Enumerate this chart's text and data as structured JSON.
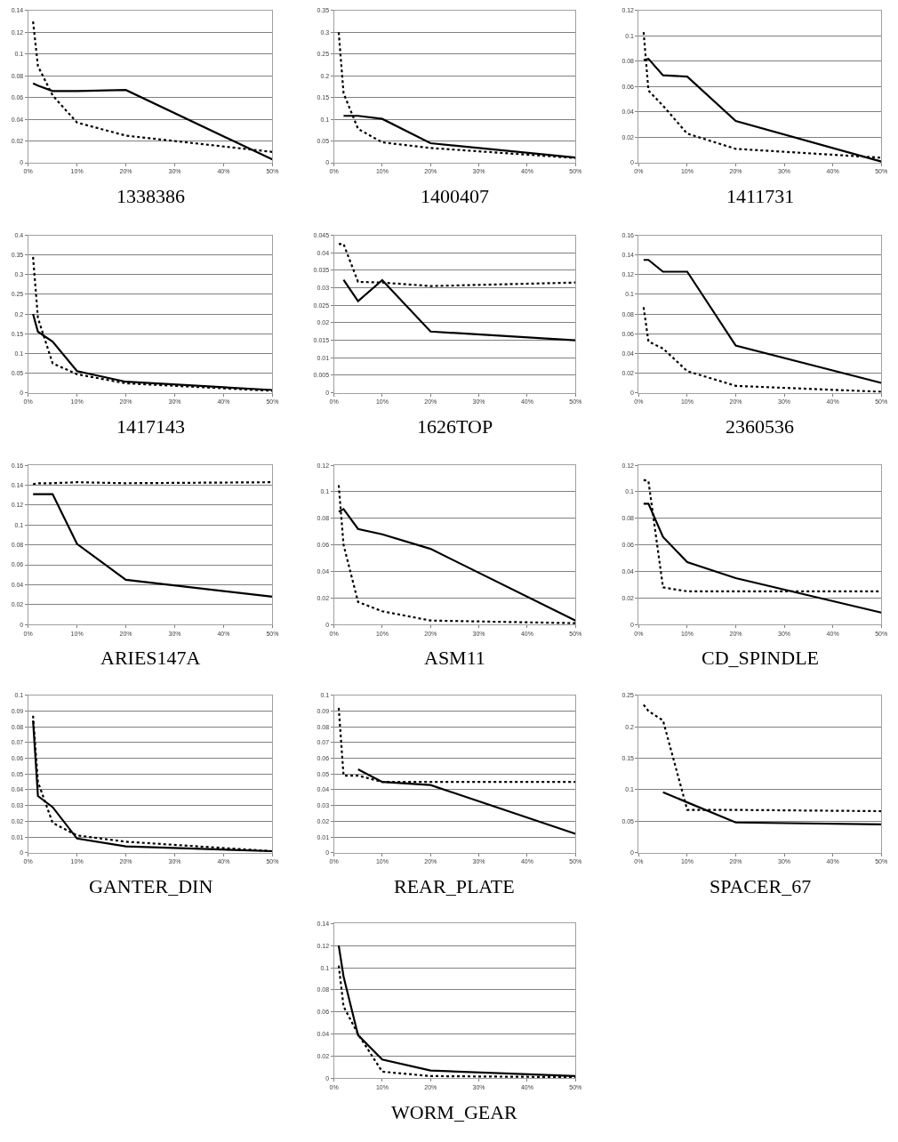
{
  "chart_data": [
    {
      "type": "line",
      "title": "1338386",
      "x": [
        1,
        2,
        5,
        10,
        20,
        50
      ],
      "xlim": [
        0,
        50
      ],
      "xticks": [
        {
          "value": 0,
          "label": "0%"
        },
        {
          "value": 10,
          "label": "10%"
        },
        {
          "value": 20,
          "label": "20%"
        },
        {
          "value": 30,
          "label": "30%"
        },
        {
          "value": 40,
          "label": "40%"
        },
        {
          "value": 50,
          "label": "50%"
        }
      ],
      "ylim": [
        0,
        0.14
      ],
      "yticks": [
        0,
        0.02,
        0.04,
        0.06,
        0.08,
        0.1,
        0.12,
        0.14
      ],
      "grid": "y",
      "series": [
        {
          "color": "#000000",
          "line_style": "solid",
          "values": [
            0.073,
            0.071,
            0.066,
            0.066,
            0.067,
            0.003
          ]
        },
        {
          "color": "#000000",
          "line_style": "dotted",
          "values": [
            0.13,
            0.089,
            0.062,
            0.037,
            0.025,
            0.01
          ]
        }
      ]
    },
    {
      "type": "line",
      "title": "1400407",
      "x": [
        1,
        2,
        5,
        10,
        20,
        50
      ],
      "xlim": [
        0,
        50
      ],
      "xticks": [
        {
          "value": 0,
          "label": "0%"
        },
        {
          "value": 10,
          "label": "10%"
        },
        {
          "value": 20,
          "label": "20%"
        },
        {
          "value": 30,
          "label": "30%"
        },
        {
          "value": 40,
          "label": "40%"
        },
        {
          "value": 50,
          "label": "50%"
        }
      ],
      "ylim": [
        0,
        0.35
      ],
      "yticks": [
        0,
        0.05,
        0.1,
        0.15,
        0.2,
        0.25,
        0.3,
        0.35
      ],
      "grid": "y",
      "series": [
        {
          "color": "#000000",
          "line_style": "solid",
          "values": [
            null,
            0.108,
            0.108,
            0.101,
            0.045,
            0.012
          ]
        },
        {
          "color": "#000000",
          "line_style": "dotted",
          "values": [
            0.3,
            0.16,
            0.078,
            0.047,
            0.034,
            0.011
          ]
        }
      ]
    },
    {
      "type": "line",
      "title": "1411731",
      "x": [
        1,
        2,
        5,
        10,
        20,
        50
      ],
      "xlim": [
        0,
        50
      ],
      "xticks": [
        {
          "value": 0,
          "label": "0%"
        },
        {
          "value": 10,
          "label": "10%"
        },
        {
          "value": 20,
          "label": "20%"
        },
        {
          "value": 30,
          "label": "30%"
        },
        {
          "value": 40,
          "label": "40%"
        },
        {
          "value": 50,
          "label": "50%"
        }
      ],
      "ylim": [
        0,
        0.12
      ],
      "yticks": [
        0,
        0.02,
        0.04,
        0.06,
        0.08,
        0.1,
        0.12
      ],
      "grid": "y",
      "series": [
        {
          "color": "#000000",
          "line_style": "solid",
          "values": [
            0.081,
            0.082,
            0.069,
            0.068,
            0.033,
            0.001
          ]
        },
        {
          "color": "#000000",
          "line_style": "dotted",
          "values": [
            0.103,
            0.057,
            0.045,
            0.023,
            0.011,
            0.004
          ]
        }
      ]
    },
    {
      "type": "line",
      "title": "1417143",
      "x": [
        1,
        2,
        5,
        10,
        20,
        50
      ],
      "xlim": [
        0,
        50
      ],
      "xticks": [
        {
          "value": 0,
          "label": "0%"
        },
        {
          "value": 10,
          "label": "10%"
        },
        {
          "value": 20,
          "label": "20%"
        },
        {
          "value": 30,
          "label": "30%"
        },
        {
          "value": 40,
          "label": "40%"
        },
        {
          "value": 50,
          "label": "50%"
        }
      ],
      "ylim": [
        0,
        0.4
      ],
      "yticks": [
        0,
        0.05,
        0.1,
        0.15,
        0.2,
        0.25,
        0.3,
        0.35,
        0.4
      ],
      "grid": "y",
      "series": [
        {
          "color": "#000000",
          "line_style": "solid",
          "values": [
            0.2,
            0.155,
            0.13,
            0.055,
            0.028,
            0.007
          ]
        },
        {
          "color": "#000000",
          "line_style": "dotted",
          "values": [
            0.345,
            0.19,
            0.075,
            0.047,
            0.024,
            0.005
          ]
        }
      ]
    },
    {
      "type": "line",
      "title": "1626TOP",
      "x": [
        1,
        2,
        5,
        10,
        20,
        50
      ],
      "xlim": [
        0,
        50
      ],
      "xticks": [
        {
          "value": 0,
          "label": "0%"
        },
        {
          "value": 10,
          "label": "10%"
        },
        {
          "value": 20,
          "label": "20%"
        },
        {
          "value": 30,
          "label": "30%"
        },
        {
          "value": 40,
          "label": "40%"
        },
        {
          "value": 50,
          "label": "50%"
        }
      ],
      "ylim": [
        0,
        0.045
      ],
      "yticks": [
        0,
        0.005,
        0.01,
        0.015,
        0.02,
        0.025,
        0.03,
        0.035,
        0.04,
        0.045
      ],
      "grid": "y",
      "series": [
        {
          "color": "#000000",
          "line_style": "solid",
          "values": [
            null,
            0.0323,
            0.0262,
            0.0322,
            0.0175,
            0.015
          ]
        },
        {
          "color": "#000000",
          "line_style": "dotted",
          "values": [
            0.0425,
            0.0425,
            0.0317,
            0.0315,
            0.0305,
            0.0315
          ]
        }
      ]
    },
    {
      "type": "line",
      "title": "2360536",
      "x": [
        1,
        2,
        5,
        10,
        20,
        50
      ],
      "xlim": [
        0,
        50
      ],
      "xticks": [
        {
          "value": 0,
          "label": "0%"
        },
        {
          "value": 10,
          "label": "10%"
        },
        {
          "value": 20,
          "label": "20%"
        },
        {
          "value": 30,
          "label": "30%"
        },
        {
          "value": 40,
          "label": "40%"
        },
        {
          "value": 50,
          "label": "50%"
        }
      ],
      "ylim": [
        0,
        0.16
      ],
      "yticks": [
        0,
        0.02,
        0.04,
        0.06,
        0.08,
        0.1,
        0.12,
        0.14,
        0.16
      ],
      "grid": "y",
      "series": [
        {
          "color": "#000000",
          "line_style": "solid",
          "values": [
            0.135,
            0.135,
            0.123,
            0.123,
            0.048,
            0.01
          ]
        },
        {
          "color": "#000000",
          "line_style": "dotted",
          "values": [
            0.087,
            0.052,
            0.045,
            0.022,
            0.007,
            0.001
          ]
        }
      ]
    },
    {
      "type": "line",
      "title": "ARIES147A",
      "x": [
        1,
        2,
        5,
        10,
        20,
        50
      ],
      "xlim": [
        0,
        50
      ],
      "xticks": [
        {
          "value": 0,
          "label": "0%"
        },
        {
          "value": 10,
          "label": "10%"
        },
        {
          "value": 20,
          "label": "20%"
        },
        {
          "value": 30,
          "label": "30%"
        },
        {
          "value": 40,
          "label": "40%"
        },
        {
          "value": 50,
          "label": "50%"
        }
      ],
      "ylim": [
        0,
        0.16
      ],
      "yticks": [
        0,
        0.02,
        0.04,
        0.06,
        0.08,
        0.1,
        0.12,
        0.14,
        0.16
      ],
      "grid": "y",
      "series": [
        {
          "color": "#000000",
          "line_style": "solid",
          "values": [
            0.131,
            0.131,
            0.131,
            0.081,
            0.045,
            0.028
          ]
        },
        {
          "color": "#000000",
          "line_style": "dotted",
          "values": [
            0.141,
            0.142,
            0.142,
            0.143,
            0.142,
            0.143
          ]
        }
      ]
    },
    {
      "type": "line",
      "title": "ASM11",
      "x": [
        1,
        2,
        5,
        10,
        20,
        50
      ],
      "xlim": [
        0,
        50
      ],
      "xticks": [
        {
          "value": 0,
          "label": "0%"
        },
        {
          "value": 10,
          "label": "10%"
        },
        {
          "value": 20,
          "label": "20%"
        },
        {
          "value": 30,
          "label": "30%"
        },
        {
          "value": 40,
          "label": "40%"
        },
        {
          "value": 50,
          "label": "50%"
        }
      ],
      "ylim": [
        0,
        0.12
      ],
      "yticks": [
        0,
        0.02,
        0.04,
        0.06,
        0.08,
        0.1,
        0.12
      ],
      "grid": "y",
      "series": [
        {
          "color": "#000000",
          "line_style": "solid",
          "values": [
            0.085,
            0.087,
            0.072,
            0.068,
            0.057,
            0.003
          ]
        },
        {
          "color": "#000000",
          "line_style": "dotted",
          "values": [
            0.105,
            0.06,
            0.017,
            0.01,
            0.003,
            0.001
          ]
        }
      ]
    },
    {
      "type": "line",
      "title": "CD_SPINDLE",
      "x": [
        1,
        2,
        5,
        10,
        20,
        50
      ],
      "xlim": [
        0,
        50
      ],
      "xticks": [
        {
          "value": 0,
          "label": "0%"
        },
        {
          "value": 10,
          "label": "10%"
        },
        {
          "value": 20,
          "label": "20%"
        },
        {
          "value": 30,
          "label": "30%"
        },
        {
          "value": 40,
          "label": "40%"
        },
        {
          "value": 50,
          "label": "50%"
        }
      ],
      "ylim": [
        0,
        0.12
      ],
      "yticks": [
        0,
        0.02,
        0.04,
        0.06,
        0.08,
        0.1,
        0.12
      ],
      "grid": "y",
      "series": [
        {
          "color": "#000000",
          "line_style": "solid",
          "values": [
            0.091,
            0.091,
            0.066,
            0.047,
            0.035,
            0.009
          ]
        },
        {
          "color": "#000000",
          "line_style": "dotted",
          "values": [
            0.109,
            0.108,
            0.028,
            0.025,
            0.025,
            0.025
          ]
        }
      ]
    },
    {
      "type": "line",
      "title": "GANTER_DIN",
      "x": [
        1,
        2,
        5,
        10,
        20,
        50
      ],
      "xlim": [
        0,
        50
      ],
      "xticks": [
        {
          "value": 0,
          "label": "0%"
        },
        {
          "value": 10,
          "label": "10%"
        },
        {
          "value": 20,
          "label": "20%"
        },
        {
          "value": 30,
          "label": "30%"
        },
        {
          "value": 40,
          "label": "40%"
        },
        {
          "value": 50,
          "label": "50%"
        }
      ],
      "ylim": [
        0,
        0.1
      ],
      "yticks": [
        0,
        0.01,
        0.02,
        0.03,
        0.04,
        0.05,
        0.06,
        0.07,
        0.08,
        0.09,
        0.1
      ],
      "grid": "y",
      "series": [
        {
          "color": "#000000",
          "line_style": "solid",
          "values": [
            0.084,
            0.036,
            0.029,
            0.009,
            0.004,
            0.001
          ]
        },
        {
          "color": "#000000",
          "line_style": "dotted",
          "values": [
            0.087,
            0.045,
            0.019,
            0.011,
            0.007,
            0.001
          ]
        }
      ]
    },
    {
      "type": "line",
      "title": "REAR_PLATE",
      "x": [
        1,
        2,
        5,
        10,
        20,
        50
      ],
      "xlim": [
        0,
        50
      ],
      "xticks": [
        {
          "value": 0,
          "label": "0%"
        },
        {
          "value": 10,
          "label": "10%"
        },
        {
          "value": 20,
          "label": "20%"
        },
        {
          "value": 30,
          "label": "30%"
        },
        {
          "value": 40,
          "label": "40%"
        },
        {
          "value": 50,
          "label": "50%"
        }
      ],
      "ylim": [
        0,
        0.1
      ],
      "yticks": [
        0,
        0.01,
        0.02,
        0.03,
        0.04,
        0.05,
        0.06,
        0.07,
        0.08,
        0.09,
        0.1
      ],
      "grid": "y",
      "series": [
        {
          "color": "#000000",
          "line_style": "solid",
          "values": [
            null,
            null,
            0.053,
            0.045,
            0.043,
            0.012
          ]
        },
        {
          "color": "#000000",
          "line_style": "dotted",
          "values": [
            0.092,
            0.049,
            0.049,
            0.045,
            0.045,
            0.045
          ]
        }
      ]
    },
    {
      "type": "line",
      "title": "SPACER_67",
      "x": [
        1,
        2,
        5,
        10,
        20,
        50
      ],
      "xlim": [
        0,
        50
      ],
      "xticks": [
        {
          "value": 0,
          "label": "0%"
        },
        {
          "value": 10,
          "label": "10%"
        },
        {
          "value": 20,
          "label": "20%"
        },
        {
          "value": 30,
          "label": "30%"
        },
        {
          "value": 40,
          "label": "40%"
        },
        {
          "value": 50,
          "label": "50%"
        }
      ],
      "ylim": [
        0,
        0.25
      ],
      "yticks": [
        0,
        0.05,
        0.1,
        0.15,
        0.2,
        0.25
      ],
      "grid": "y",
      "series": [
        {
          "color": "#000000",
          "line_style": "solid",
          "values": [
            null,
            null,
            0.096,
            0.08,
            0.048,
            0.045
          ]
        },
        {
          "color": "#000000",
          "line_style": "dotted",
          "values": [
            0.235,
            0.225,
            0.21,
            0.068,
            0.068,
            0.066
          ]
        }
      ]
    },
    {
      "type": "line",
      "title": "WORM_GEAR",
      "x": [
        1,
        2,
        5,
        10,
        20,
        50
      ],
      "xlim": [
        0,
        50
      ],
      "xticks": [
        {
          "value": 0,
          "label": "0%"
        },
        {
          "value": 10,
          "label": "10%"
        },
        {
          "value": 20,
          "label": "20%"
        },
        {
          "value": 30,
          "label": "30%"
        },
        {
          "value": 40,
          "label": "40%"
        },
        {
          "value": 50,
          "label": "50%"
        }
      ],
      "ylim": [
        0,
        0.14
      ],
      "yticks": [
        0,
        0.02,
        0.04,
        0.06,
        0.08,
        0.1,
        0.12,
        0.14
      ],
      "grid": "y",
      "series": [
        {
          "color": "#000000",
          "line_style": "solid",
          "values": [
            0.12,
            0.092,
            0.039,
            0.017,
            0.007,
            0.002
          ]
        },
        {
          "color": "#000000",
          "line_style": "dotted",
          "values": [
            0.102,
            0.065,
            0.04,
            0.006,
            0.002,
            0.001
          ]
        }
      ]
    }
  ]
}
